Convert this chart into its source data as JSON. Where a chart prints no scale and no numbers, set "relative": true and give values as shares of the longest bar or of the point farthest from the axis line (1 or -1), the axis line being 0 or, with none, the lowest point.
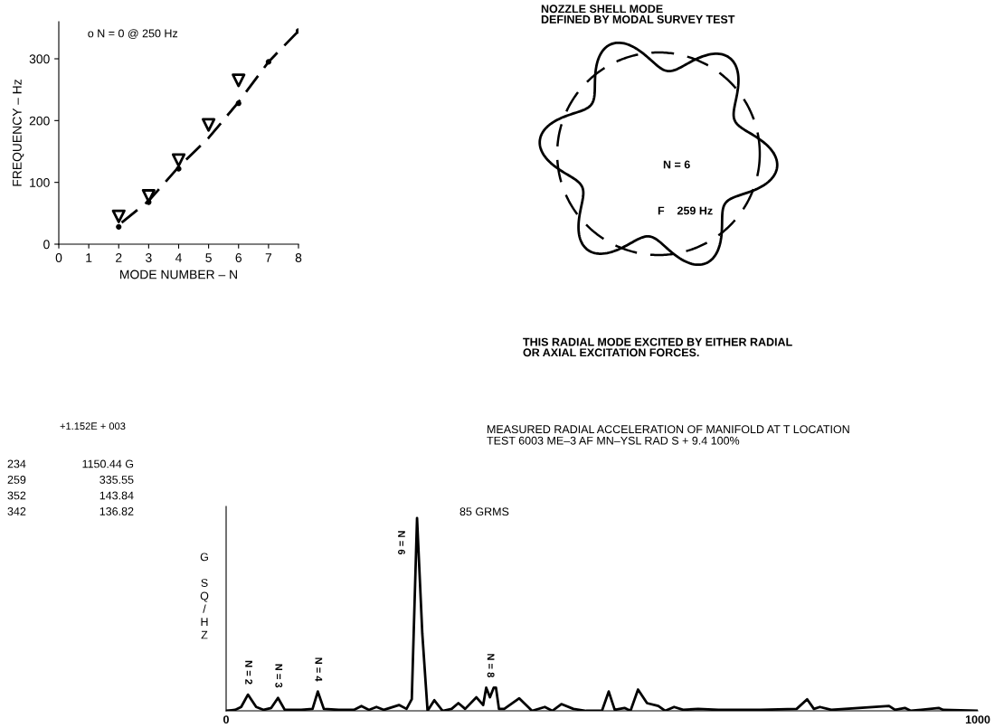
{
  "chart_data": [
    {
      "type": "scatter",
      "xlabel": "MODE NUMBER – N",
      "ylabel": "FREQUENCY – Hz",
      "annotations": [
        "o N = 0 @ 250 Hz"
      ],
      "xlim": [
        0,
        8
      ],
      "ylim": [
        0,
        360
      ],
      "xticks": [
        0,
        1,
        2,
        3,
        4,
        5,
        6,
        7,
        8
      ],
      "yticks": [
        0,
        100,
        200,
        300
      ],
      "series": [
        {
          "type": "scatter",
          "color": "#000000",
          "marker": "triangle",
          "x": [
            2,
            3,
            4,
            5,
            6
          ],
          "values": [
            45,
            78,
            136,
            193,
            265
          ]
        },
        {
          "type": "scatter",
          "color": "#000000",
          "marker": "circle",
          "x": [
            2,
            3,
            4,
            6,
            7,
            8
          ],
          "values": [
            28,
            68,
            122,
            228,
            295,
            345
          ]
        },
        {
          "type": "line",
          "color": "#000000",
          "line_style": "dashed",
          "x": [
            2.1,
            3,
            4,
            5,
            6,
            7,
            8
          ],
          "values": [
            35,
            70,
            125,
            172,
            230,
            295,
            345
          ]
        }
      ]
    },
    {
      "type": "other",
      "title": "NOZZLE SHELL MODE\nDEFINED BY MODAL SURVEY TEST",
      "annotations": [
        "N = 6",
        "F    259 Hz",
        "THIS RADIAL MODE EXCITED BY EITHER RADIAL\nOR AXIAL EXCITATION FORCES."
      ]
    },
    {
      "type": "line",
      "title": "MEASURED RADIAL ACCELERATION OF MANIFOLD AT T LOCATION\nTEST 6003 ME–3 AF MN–YSL RAD S + 9.4 100%",
      "ylabel": "G SQ/HZ",
      "relative": true,
      "tick_labels": "x",
      "xlim": [
        0,
        1000
      ],
      "xticks": [
        0,
        1000
      ],
      "series": [
        {
          "color": "#000000",
          "x": [
            0,
            12,
            20,
            29,
            40,
            50,
            60,
            69,
            78,
            100,
            115,
            122,
            130,
            150,
            170,
            180,
            190,
            200,
            210,
            230,
            240,
            247,
            254,
            261,
            268,
            277,
            288,
            300,
            309,
            318,
            333,
            342,
            346,
            351,
            356,
            359,
            363,
            370,
            390,
            407,
            424,
            434,
            446,
            462,
            479,
            500,
            509,
            517,
            530,
            538,
            548,
            560,
            575,
            584,
            596,
            608,
            628,
            655,
            711,
            759,
            773,
            782,
            790,
            805,
            882,
            890,
            903,
            911,
            948,
            954,
            1000
          ],
          "values": [
            0,
            0.005,
            0.02,
            0.084,
            0.02,
            0.005,
            0.015,
            0.067,
            0.005,
            0.005,
            0.01,
            0.1,
            0.01,
            0.005,
            0.005,
            0.025,
            0.005,
            0.02,
            0.005,
            0.03,
            0.01,
            0.06,
            1.0,
            0.4,
            0.0,
            0.055,
            0.0,
            0.01,
            0.04,
            0.01,
            0.07,
            0.03,
            0.12,
            0.07,
            0.12,
            0.12,
            0.01,
            0.01,
            0.065,
            0.0,
            0.02,
            0.0,
            0.035,
            0.01,
            0.0,
            0.0,
            0.1,
            0.005,
            0.015,
            0.0,
            0.11,
            0.04,
            0.025,
            0.0,
            0.02,
            0.005,
            0.01,
            0.005,
            0.005,
            0.01,
            0.06,
            0.01,
            0.02,
            0.005,
            0.025,
            0.005,
            0.015,
            0.0,
            0.015,
            0.005,
            0.0
          ]
        }
      ],
      "annotations": [
        {
          "text": "N = 2",
          "x": 29,
          "y": 0.084
        },
        {
          "text": "N = 3",
          "x": 69,
          "y": 0.067
        },
        {
          "text": "N = 4",
          "x": 122,
          "y": 0.1
        },
        {
          "text": "N = 8",
          "x": 351,
          "y": 0.12
        },
        "N = 6",
        "85 GRMS",
        "+1.152E + 003",
        "234 1150.44 G",
        "259 335.55",
        "352 143.84",
        "342 136.82"
      ]
    }
  ]
}
